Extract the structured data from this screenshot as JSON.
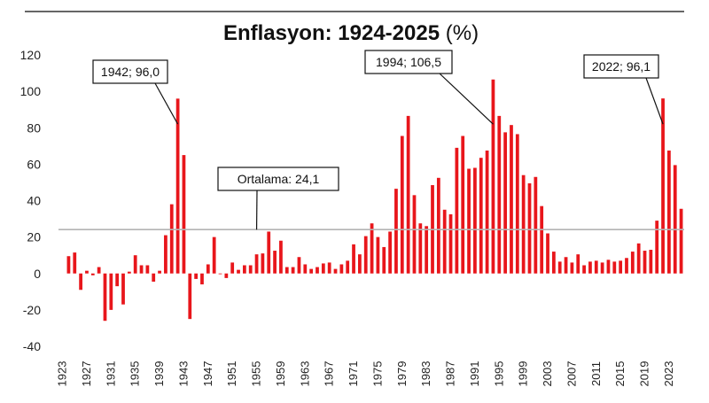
{
  "chart_data": {
    "type": "bar",
    "title": "Enflasyon: 1924-2025",
    "title_unit": "(%)",
    "xlabel": "",
    "ylabel": "",
    "ylim": [
      -40,
      120
    ],
    "yticks": [
      -40,
      -20,
      0,
      20,
      40,
      60,
      80,
      100,
      120
    ],
    "x_tick_labels": [
      "1923",
      "1927",
      "1931",
      "1935",
      "1939",
      "1943",
      "1947",
      "1951",
      "1955",
      "1959",
      "1963",
      "1967",
      "1971",
      "1975",
      "1979",
      "1983",
      "1987",
      "1991",
      "1995",
      "1999",
      "2003",
      "2007",
      "2011",
      "2015",
      "2019",
      "2023"
    ],
    "categories": [
      1924,
      1925,
      1926,
      1927,
      1928,
      1929,
      1930,
      1931,
      1932,
      1933,
      1934,
      1935,
      1936,
      1937,
      1938,
      1939,
      1940,
      1941,
      1942,
      1943,
      1944,
      1945,
      1946,
      1947,
      1948,
      1949,
      1950,
      1951,
      1952,
      1953,
      1954,
      1955,
      1956,
      1957,
      1958,
      1959,
      1960,
      1961,
      1962,
      1963,
      1964,
      1965,
      1966,
      1967,
      1968,
      1969,
      1970,
      1971,
      1972,
      1973,
      1974,
      1975,
      1976,
      1977,
      1978,
      1979,
      1980,
      1981,
      1982,
      1983,
      1984,
      1985,
      1986,
      1987,
      1988,
      1989,
      1990,
      1991,
      1992,
      1993,
      1994,
      1995,
      1996,
      1997,
      1998,
      1999,
      2000,
      2001,
      2002,
      2003,
      2004,
      2005,
      2006,
      2007,
      2008,
      2009,
      2010,
      2011,
      2012,
      2013,
      2014,
      2015,
      2016,
      2017,
      2018,
      2019,
      2020,
      2021,
      2022,
      2023,
      2024,
      2025
    ],
    "values": [
      9.5,
      11.5,
      -9,
      1.5,
      -1,
      3.5,
      -26,
      -20,
      -7,
      -17,
      1,
      10,
      4.5,
      4.5,
      -4.5,
      1.5,
      21,
      38,
      96,
      65,
      -25,
      -3,
      -6,
      5,
      20,
      0,
      -2.5,
      6,
      2,
      4.5,
      4.5,
      10.5,
      11,
      23,
      12.5,
      18,
      3.5,
      3.5,
      9,
      5,
      2.5,
      3.5,
      5.5,
      6,
      2.5,
      5,
      7,
      16,
      10.5,
      20.5,
      27.5,
      20,
      14.5,
      23,
      46.5,
      75.5,
      86.5,
      43,
      27.5,
      26,
      48.5,
      52.5,
      35,
      32.5,
      69,
      75.5,
      57.5,
      58,
      63.5,
      67.5,
      106.5,
      86.5,
      77.5,
      81.5,
      76.5,
      54,
      49.5,
      53,
      37,
      22,
      12,
      6.5,
      9,
      6,
      10.5,
      4.5,
      6.5,
      7,
      6,
      7.5,
      6.5,
      7,
      8.5,
      12,
      16.5,
      12.5,
      13,
      29,
      96.1,
      67.5,
      59.5,
      35.5
    ],
    "series": [
      {
        "name": "Enflasyon (%)",
        "color": "#e8161b"
      }
    ],
    "reference_line": {
      "name": "Ortalama",
      "value": 24.1,
      "color": "#b4b4b4"
    },
    "annotations": [
      {
        "year": 1942,
        "value": 96.0,
        "label": "1942; 96,0"
      },
      {
        "year": 1994,
        "value": 106.5,
        "label": "1994; 106,5"
      },
      {
        "year": 2022,
        "value": 96.1,
        "label": "2022; 96,1"
      },
      {
        "year": 1955,
        "value": 24.1,
        "label": "Ortalama:  24,1"
      }
    ],
    "grid": false,
    "legend": "none"
  }
}
